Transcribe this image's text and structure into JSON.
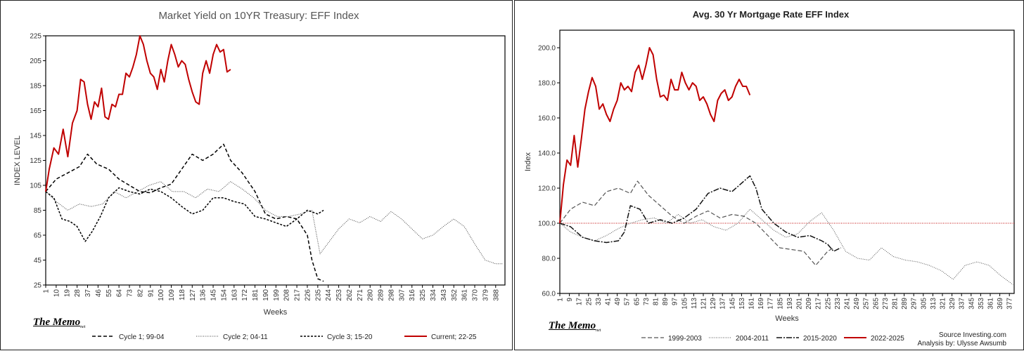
{
  "chart_data": [
    {
      "type": "line",
      "title": "Market Yield on 10YR Treasury: EFF Index",
      "xlabel": "Weeks",
      "ylabel": "INDEX LEVEL",
      "ylim": [
        25,
        225
      ],
      "yticks": [
        25,
        45,
        65,
        85,
        105,
        125,
        145,
        165,
        185,
        205,
        225
      ],
      "xlim": [
        1,
        396
      ],
      "xtick_start": 1,
      "xtick_step": 9,
      "xtick_count": 44,
      "grid": false,
      "legend_position": "bottom",
      "series": [
        {
          "name": "Cycle 1; 99-04",
          "color": "#000000",
          "dash": "5 3",
          "width": 1.5,
          "x": [
            1,
            10,
            20,
            30,
            37,
            45,
            55,
            64,
            73,
            82,
            91,
            100,
            109,
            118,
            127,
            136,
            145,
            154,
            160,
            170,
            181,
            190,
            199,
            208,
            217,
            226,
            230,
            235,
            240
          ],
          "values": [
            100,
            110,
            115,
            120,
            130,
            122,
            118,
            110,
            105,
            100,
            99,
            103,
            106,
            118,
            130,
            125,
            130,
            138,
            125,
            115,
            100,
            82,
            78,
            80,
            78,
            65,
            45,
            30,
            28
          ]
        },
        {
          "name": "Cycle 2; 04-11",
          "color": "#444444",
          "dash": "1 1.5",
          "width": 1,
          "x": [
            1,
            10,
            20,
            30,
            40,
            50,
            60,
            70,
            80,
            90,
            100,
            110,
            120,
            130,
            140,
            150,
            160,
            170,
            180,
            190,
            200,
            210,
            220,
            230,
            237,
            245,
            253,
            262,
            271,
            280,
            289,
            298,
            307,
            316,
            325,
            334,
            343,
            352,
            361,
            370,
            379,
            388,
            394
          ],
          "values": [
            100,
            92,
            85,
            90,
            88,
            90,
            100,
            95,
            100,
            105,
            108,
            100,
            100,
            95,
            102,
            100,
            108,
            102,
            95,
            85,
            80,
            80,
            82,
            85,
            50,
            60,
            70,
            78,
            75,
            80,
            76,
            84,
            78,
            70,
            62,
            65,
            72,
            78,
            72,
            58,
            45,
            42,
            42
          ]
        },
        {
          "name": "Cycle 3; 15-20",
          "color": "#000000",
          "dash": "3 2",
          "width": 1.5,
          "x": [
            1,
            8,
            15,
            22,
            28,
            35,
            41,
            48,
            55,
            64,
            73,
            82,
            91,
            100,
            109,
            118,
            127,
            136,
            145,
            154,
            163,
            172,
            181,
            190,
            199,
            208,
            217,
            226,
            235,
            240
          ],
          "values": [
            100,
            95,
            78,
            76,
            72,
            60,
            68,
            80,
            95,
            103,
            100,
            98,
            102,
            100,
            95,
            88,
            82,
            85,
            95,
            95,
            92,
            90,
            80,
            78,
            75,
            72,
            78,
            85,
            82,
            85
          ]
        },
        {
          "name": "Current; 22-25",
          "color": "#c00000",
          "dash": "",
          "width": 2,
          "x": [
            1,
            4,
            8,
            12,
            16,
            20,
            24,
            28,
            31,
            34,
            37,
            40,
            43,
            46,
            49,
            52,
            55,
            58,
            61,
            64,
            67,
            70,
            73,
            76,
            79,
            82,
            85,
            88,
            91,
            94,
            97,
            100,
            103,
            106,
            109,
            112,
            115,
            118,
            121,
            124,
            127,
            130,
            133,
            136,
            139,
            142,
            145,
            148,
            151,
            154,
            157,
            160
          ],
          "values": [
            100,
            118,
            135,
            130,
            150,
            128,
            155,
            165,
            190,
            188,
            170,
            158,
            172,
            168,
            183,
            160,
            158,
            170,
            168,
            178,
            178,
            195,
            192,
            200,
            210,
            225,
            218,
            205,
            195,
            192,
            182,
            198,
            188,
            205,
            218,
            210,
            200,
            205,
            202,
            190,
            180,
            172,
            170,
            195,
            205,
            195,
            210,
            218,
            212,
            214,
            196,
            198
          ]
        }
      ],
      "notes": [
        "The Memo"
      ]
    },
    {
      "type": "line",
      "title": "Avg. 30 Yr Mortgage Rate EFF  Index",
      "xlabel": "Weeks",
      "ylabel": "Index",
      "ylim": [
        60,
        210
      ],
      "yticks": [
        "60.0",
        "80.0",
        "100.0",
        "120.0",
        "140.0",
        "160.0",
        "180.0",
        "200.0"
      ],
      "xlim": [
        1,
        381
      ],
      "xtick_start": 1,
      "xtick_step": 8,
      "xtick_count": 48,
      "grid": false,
      "reference_line": 100,
      "legend_position": "bottom",
      "series": [
        {
          "name": "1999-2003",
          "color": "#555555",
          "dash": "6 3",
          "width": 1.2,
          "x": [
            1,
            10,
            20,
            30,
            40,
            50,
            60,
            66,
            75,
            85,
            95,
            105,
            115,
            125,
            135,
            145,
            155,
            165,
            175,
            185,
            195,
            205,
            215,
            225,
            230
          ],
          "values": [
            100,
            108,
            112,
            110,
            118,
            120,
            117,
            124,
            116,
            110,
            104,
            100,
            104,
            107,
            103,
            105,
            104,
            100,
            93,
            86,
            85,
            84,
            76,
            84,
            86
          ]
        },
        {
          "name": "2004-2011",
          "color": "#555555",
          "dash": "1 1.5",
          "width": 1,
          "x": [
            1,
            10,
            20,
            30,
            40,
            50,
            60,
            70,
            80,
            90,
            100,
            110,
            120,
            130,
            140,
            150,
            160,
            170,
            180,
            190,
            200,
            210,
            220,
            230,
            240,
            250,
            260,
            270,
            280,
            290,
            300,
            310,
            320,
            330,
            340,
            350,
            360,
            370,
            380
          ],
          "values": [
            100,
            95,
            92,
            90,
            93,
            97,
            100,
            102,
            103,
            100,
            105,
            100,
            102,
            98,
            96,
            100,
            108,
            102,
            96,
            92,
            94,
            101,
            106,
            96,
            84,
            80,
            79,
            86,
            81,
            79,
            78,
            76,
            73,
            68,
            76,
            78,
            76,
            70,
            65
          ]
        },
        {
          "name": "2015-2020",
          "color": "#111111",
          "dash": "8 2 2 2",
          "width": 1.5,
          "x": [
            1,
            10,
            20,
            30,
            40,
            50,
            55,
            60,
            68,
            75,
            85,
            95,
            105,
            115,
            125,
            135,
            145,
            155,
            160,
            165,
            170,
            180,
            190,
            200,
            210,
            220,
            225,
            230,
            236
          ],
          "values": [
            100,
            98,
            92,
            90,
            89,
            90,
            95,
            110,
            108,
            100,
            102,
            100,
            103,
            108,
            117,
            120,
            118,
            124,
            127,
            120,
            108,
            100,
            95,
            92,
            93,
            90,
            88,
            84,
            86
          ]
        },
        {
          "name": "2022-2025",
          "color": "#c00000",
          "dash": "",
          "width": 2,
          "x": [
            1,
            4,
            7,
            10,
            13,
            16,
            19,
            22,
            25,
            28,
            31,
            34,
            37,
            40,
            43,
            46,
            49,
            52,
            55,
            58,
            61,
            64,
            67,
            70,
            73,
            76,
            79,
            82,
            85,
            88,
            91,
            94,
            97,
            100,
            103,
            106,
            109,
            112,
            115,
            118,
            121,
            124,
            127,
            130,
            133,
            136,
            139,
            142,
            145,
            148,
            151,
            154,
            157,
            160
          ],
          "values": [
            100,
            122,
            136,
            133,
            150,
            132,
            148,
            165,
            175,
            183,
            178,
            165,
            168,
            162,
            158,
            165,
            170,
            180,
            176,
            178,
            175,
            186,
            190,
            182,
            190,
            200,
            196,
            182,
            172,
            173,
            170,
            182,
            176,
            176,
            186,
            180,
            176,
            180,
            178,
            170,
            172,
            168,
            162,
            158,
            170,
            174,
            176,
            170,
            172,
            178,
            182,
            178,
            178,
            173
          ]
        }
      ],
      "notes": [
        "The Memo",
        "Source Investing.com",
        "Analysis by: Ulysse Awsumb"
      ]
    }
  ],
  "memo_label": "The Memo",
  "memo_suffix": "net",
  "source_line": "Source Investing.com",
  "analysis_line": "Analysis by: Ulysse Awsumb"
}
